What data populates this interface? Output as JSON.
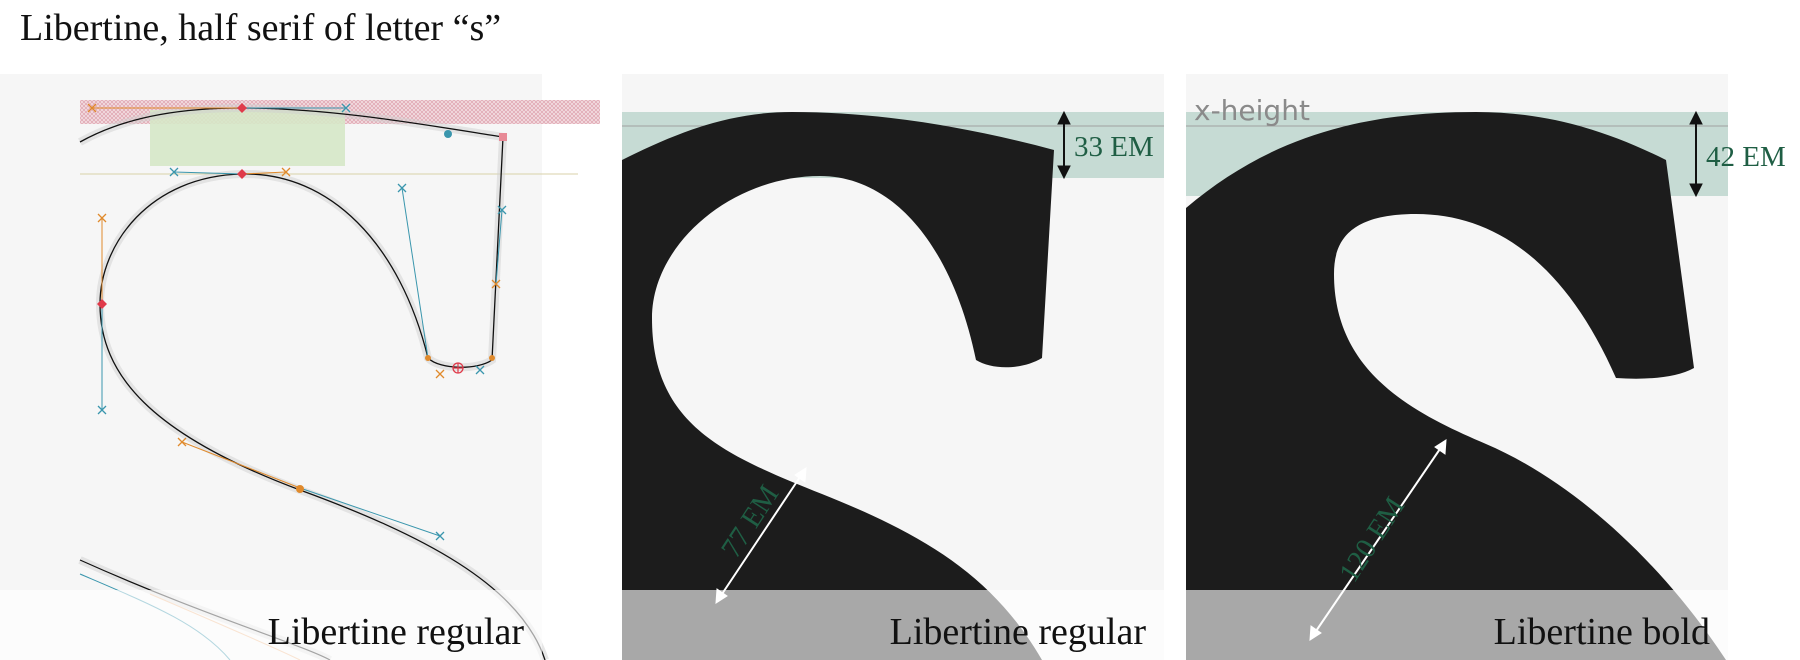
{
  "title": "Libertine, half serif of letter “s”",
  "panels": [
    {
      "caption": "Libertine regular"
    },
    {
      "caption": "Libertine regular",
      "serif_height": "33 EM",
      "stem_width": "77 EM"
    },
    {
      "caption": "Libertine bold",
      "x_height_label": "x-height",
      "serif_height": "42 EM",
      "stem_width": "120 EM"
    }
  ],
  "colors": {
    "glyph": "#1c1c1c",
    "measure_band": "#c6dbd4",
    "measure_text": "#1f5e44",
    "hint_band_red": "#e8b8c0",
    "hint_band_green": "#d6e8c8",
    "handle_orange": "#e08a2c",
    "handle_teal": "#3a96ad",
    "node_red": "#e03a4a"
  }
}
